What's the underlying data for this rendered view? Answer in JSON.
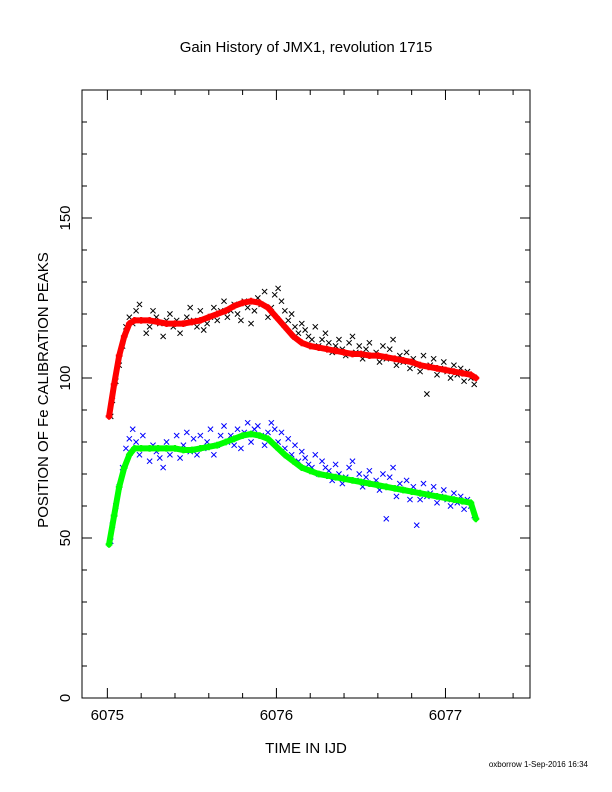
{
  "chart_data": {
    "type": "scatter",
    "title": "Gain History of JMX1, revolution 1715",
    "xlabel": "TIME IN IJD",
    "ylabel": "POSITION OF Fe CALIBRATION PEAKS",
    "xlim": [
      6074.85,
      6077.5
    ],
    "ylim": [
      0,
      190
    ],
    "xticks": [
      6075,
      6076,
      6077
    ],
    "xtick_labels": [
      "6075",
      "6076",
      "6077"
    ],
    "yticks": [
      0,
      50,
      100,
      150
    ],
    "ytick_labels": [
      "0",
      "50",
      "100",
      "150"
    ],
    "grid": false,
    "legend": "none",
    "series": [
      {
        "color": "#000000",
        "marker": "x",
        "description": "upper peak measurements",
        "x": [
          6075.02,
          6075.03,
          6075.05,
          6075.07,
          6075.09,
          6075.11,
          6075.13,
          6075.15,
          6075.17,
          6075.19,
          6075.21,
          6075.23,
          6075.25,
          6075.27,
          6075.29,
          6075.31,
          6075.33,
          6075.35,
          6075.37,
          6075.39,
          6075.41,
          6075.43,
          6075.45,
          6075.47,
          6075.49,
          6075.51,
          6075.53,
          6075.55,
          6075.57,
          6075.59,
          6075.61,
          6075.63,
          6075.65,
          6075.67,
          6075.69,
          6075.71,
          6075.73,
          6075.75,
          6075.77,
          6075.79,
          6075.81,
          6075.83,
          6075.85,
          6075.87,
          6075.89,
          6075.91,
          6075.93,
          6075.95,
          6075.97,
          6075.99,
          6076.01,
          6076.03,
          6076.05,
          6076.07,
          6076.09,
          6076.11,
          6076.13,
          6076.15,
          6076.17,
          6076.19,
          6076.21,
          6076.23,
          6076.25,
          6076.27,
          6076.29,
          6076.31,
          6076.33,
          6076.35,
          6076.37,
          6076.39,
          6076.41,
          6076.43,
          6076.45,
          6076.47,
          6076.49,
          6076.51,
          6076.53,
          6076.55,
          6076.57,
          6076.59,
          6076.61,
          6076.63,
          6076.65,
          6076.67,
          6076.69,
          6076.71,
          6076.73,
          6076.75,
          6076.77,
          6076.79,
          6076.81,
          6076.83,
          6076.85,
          6076.87,
          6076.89,
          6076.91,
          6076.93,
          6076.95,
          6076.97,
          6076.99,
          6077.01,
          6077.03,
          6077.05,
          6077.07,
          6077.09,
          6077.11,
          6077.13,
          6077.15,
          6077.17
        ],
        "y": [
          88,
          93,
          99,
          104,
          110,
          116,
          119,
          117,
          121,
          123,
          118,
          114,
          116,
          121,
          119,
          117,
          113,
          118,
          120,
          116,
          118,
          114,
          117,
          119,
          122,
          118,
          116,
          121,
          115,
          117,
          119,
          122,
          118,
          121,
          124,
          119,
          121,
          123,
          120,
          118,
          124,
          122,
          117,
          121,
          125,
          123,
          127,
          119,
          122,
          126,
          128,
          124,
          121,
          118,
          120,
          116,
          114,
          117,
          115,
          113,
          112,
          116,
          110,
          112,
          114,
          111,
          108,
          110,
          112,
          109,
          107,
          111,
          113,
          108,
          110,
          106,
          109,
          111,
          107,
          108,
          105,
          110,
          106,
          109,
          112,
          104,
          107,
          105,
          108,
          103,
          106,
          104,
          102,
          107,
          95,
          104,
          106,
          101,
          103,
          105,
          102,
          100,
          104,
          101,
          103,
          99,
          102,
          100,
          98
        ]
      },
      {
        "color": "#ff0000",
        "marker": "+",
        "description": "upper peak fit",
        "x": [
          6075.01,
          6075.04,
          6075.07,
          6075.1,
          6075.13,
          6075.16,
          6075.2,
          6075.25,
          6075.3,
          6075.35,
          6075.4,
          6075.45,
          6075.5,
          6075.55,
          6075.6,
          6075.65,
          6075.7,
          6075.75,
          6075.8,
          6075.85,
          6075.9,
          6075.95,
          6076.0,
          6076.05,
          6076.1,
          6076.15,
          6076.2,
          6076.25,
          6076.3,
          6076.35,
          6076.4,
          6076.45,
          6076.5,
          6076.55,
          6076.6,
          6076.65,
          6076.7,
          6076.75,
          6076.8,
          6076.85,
          6076.9,
          6076.95,
          6077.0,
          6077.05,
          6077.1,
          6077.15,
          6077.18
        ],
        "y": [
          88,
          98,
          107,
          113,
          117,
          118,
          118,
          118,
          117.5,
          117,
          117,
          117,
          117.5,
          118,
          119,
          120,
          121,
          122.5,
          123.5,
          124,
          123.5,
          122,
          119,
          116,
          113,
          111,
          110,
          109.5,
          109,
          108.5,
          108,
          107.5,
          107.5,
          107,
          107,
          106.5,
          106,
          105.5,
          105,
          104,
          103.5,
          103,
          102.5,
          102,
          101.5,
          101,
          100
        ]
      },
      {
        "color": "#0000ff",
        "marker": "x",
        "description": "lower peak measurements",
        "x": [
          6075.02,
          6075.03,
          6075.05,
          6075.07,
          6075.09,
          6075.11,
          6075.13,
          6075.15,
          6075.17,
          6075.19,
          6075.21,
          6075.23,
          6075.25,
          6075.27,
          6075.29,
          6075.31,
          6075.33,
          6075.35,
          6075.37,
          6075.39,
          6075.41,
          6075.43,
          6075.45,
          6075.47,
          6075.49,
          6075.51,
          6075.53,
          6075.55,
          6075.57,
          6075.59,
          6075.61,
          6075.63,
          6075.65,
          6075.67,
          6075.69,
          6075.71,
          6075.73,
          6075.75,
          6075.77,
          6075.79,
          6075.81,
          6075.83,
          6075.85,
          6075.87,
          6075.89,
          6075.91,
          6075.93,
          6075.95,
          6075.97,
          6075.99,
          6076.01,
          6076.03,
          6076.05,
          6076.07,
          6076.09,
          6076.11,
          6076.13,
          6076.15,
          6076.17,
          6076.19,
          6076.21,
          6076.23,
          6076.25,
          6076.27,
          6076.29,
          6076.31,
          6076.33,
          6076.35,
          6076.37,
          6076.39,
          6076.41,
          6076.43,
          6076.45,
          6076.47,
          6076.49,
          6076.51,
          6076.53,
          6076.55,
          6076.57,
          6076.59,
          6076.61,
          6076.63,
          6076.65,
          6076.67,
          6076.69,
          6076.71,
          6076.73,
          6076.75,
          6076.77,
          6076.79,
          6076.81,
          6076.83,
          6076.85,
          6076.87,
          6076.89,
          6076.91,
          6076.93,
          6076.95,
          6076.97,
          6076.99,
          6077.01,
          6077.03,
          6077.05,
          6077.07,
          6077.09,
          6077.11,
          6077.13,
          6077.15,
          6077.17
        ],
        "y": [
          49,
          54,
          60,
          66,
          72,
          78,
          81,
          84,
          80,
          76,
          82,
          78,
          74,
          79,
          77,
          75,
          72,
          80,
          76,
          78,
          82,
          75,
          79,
          83,
          77,
          81,
          76,
          82,
          78,
          80,
          84,
          76,
          79,
          82,
          85,
          80,
          82,
          79,
          84,
          78,
          83,
          86,
          80,
          84,
          85,
          82,
          79,
          83,
          86,
          84,
          80,
          83,
          78,
          81,
          76,
          79,
          74,
          77,
          75,
          73,
          72,
          76,
          70,
          74,
          72,
          71,
          68,
          73,
          70,
          67,
          69,
          72,
          74,
          68,
          70,
          66,
          69,
          71,
          67,
          68,
          65,
          70,
          56,
          69,
          72,
          63,
          67,
          65,
          68,
          62,
          66,
          54,
          62,
          67,
          63,
          64,
          66,
          61,
          63,
          65,
          62,
          60,
          64,
          61,
          63,
          59,
          62,
          60,
          57
        ]
      },
      {
        "color": "#00ff00",
        "marker": "+",
        "description": "lower peak fit",
        "x": [
          6075.01,
          6075.04,
          6075.07,
          6075.1,
          6075.13,
          6075.16,
          6075.2,
          6075.25,
          6075.3,
          6075.35,
          6075.4,
          6075.45,
          6075.5,
          6075.55,
          6075.6,
          6075.65,
          6075.7,
          6075.75,
          6075.8,
          6075.85,
          6075.9,
          6075.95,
          6076.0,
          6076.05,
          6076.1,
          6076.15,
          6076.2,
          6076.25,
          6076.3,
          6076.35,
          6076.4,
          6076.45,
          6076.5,
          6076.55,
          6076.6,
          6076.65,
          6076.7,
          6076.75,
          6076.8,
          6076.85,
          6076.9,
          6076.95,
          6077.0,
          6077.05,
          6077.1,
          6077.15,
          6077.18
        ],
        "y": [
          48,
          57,
          66,
          72,
          76,
          78,
          78,
          78,
          78,
          78,
          78,
          77.5,
          77.5,
          78,
          78.5,
          79,
          80,
          81,
          82,
          82.5,
          82,
          81,
          78.5,
          76,
          74,
          72,
          71,
          70,
          69.5,
          69,
          68.5,
          68,
          67.5,
          67,
          66.5,
          66,
          65.5,
          65,
          64.5,
          64,
          63.5,
          63,
          62.5,
          62,
          61.5,
          61,
          56
        ]
      }
    ]
  },
  "footer": {
    "stamp": "oxborrow  1-Sep-2016 16:34"
  }
}
